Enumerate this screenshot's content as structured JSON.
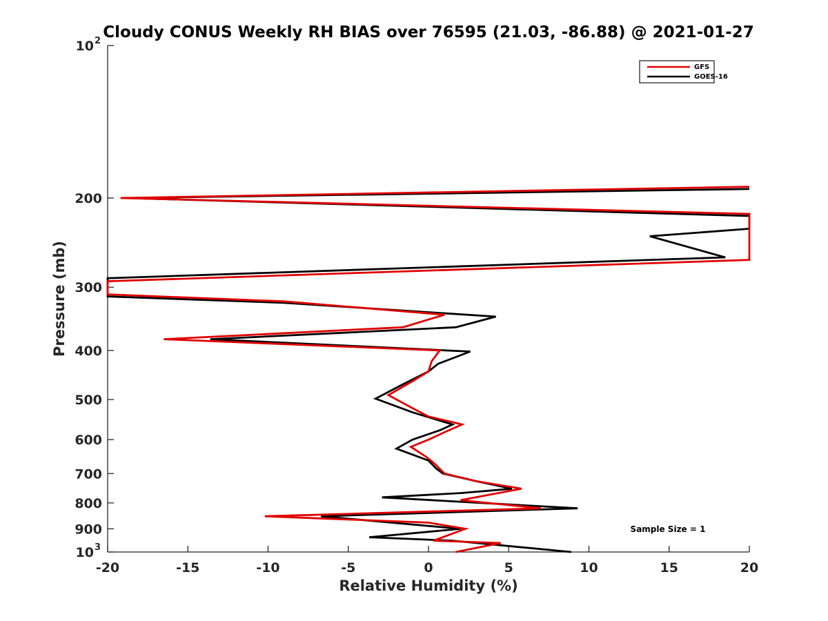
{
  "chart_data": {
    "type": "line",
    "title": "Cloudy CONUS Weekly RH BIAS over 76595 (21.03, -86.88) @ 2021-01-27",
    "xlabel": "Relative Humidity (%)",
    "ylabel": "Pressure (mb)",
    "xlim": [
      -20,
      20
    ],
    "ylim": [
      100,
      1000
    ],
    "yscale": "log",
    "y_reversed": true,
    "xticks": [
      -20,
      -15,
      -10,
      -5,
      0,
      5,
      10,
      15,
      20
    ],
    "xtick_labels": [
      "-20",
      "-15",
      "-10",
      "-5",
      "0",
      "5",
      "10",
      "15",
      "20"
    ],
    "yticks": [
      {
        "value": 100,
        "label": "10",
        "sup": "2"
      },
      {
        "value": 200,
        "label": "200",
        "sup": ""
      },
      {
        "value": 300,
        "label": "300",
        "sup": ""
      },
      {
        "value": 400,
        "label": "400",
        "sup": ""
      },
      {
        "value": 500,
        "label": "500",
        "sup": ""
      },
      {
        "value": 600,
        "label": "600",
        "sup": ""
      },
      {
        "value": 700,
        "label": "700",
        "sup": ""
      },
      {
        "value": 800,
        "label": "800",
        "sup": ""
      },
      {
        "value": 900,
        "label": "900",
        "sup": ""
      },
      {
        "value": 1000,
        "label": "10",
        "sup": "3"
      }
    ],
    "legend": {
      "position": "top-right",
      "entries": [
        "GFS",
        "GOES-16"
      ]
    },
    "annotation": "Sample Size = 1",
    "series": [
      {
        "name": "GFS",
        "color": "#e00000",
        "points": [
          [
            20,
            190
          ],
          [
            -19.2,
            200
          ],
          [
            20,
            215
          ],
          [
            20,
            265
          ],
          [
            -20,
            292
          ],
          [
            -20,
            310
          ],
          [
            -9,
            320
          ],
          [
            1.0,
            340
          ],
          [
            -1.6,
            360
          ],
          [
            -16.5,
            380
          ],
          [
            0.7,
            400
          ],
          [
            0.2,
            420
          ],
          [
            0.0,
            440
          ],
          [
            -1.0,
            460
          ],
          [
            -2.5,
            490
          ],
          [
            -1.0,
            520
          ],
          [
            0.0,
            540
          ],
          [
            2.1,
            560
          ],
          [
            1.0,
            580
          ],
          [
            0.0,
            600
          ],
          [
            -1.1,
            620
          ],
          [
            -0.1,
            650
          ],
          [
            0.4,
            670
          ],
          [
            0.6,
            680
          ],
          [
            1.0,
            700
          ],
          [
            3.0,
            725
          ],
          [
            5.8,
            750
          ],
          [
            2.0,
            790
          ],
          [
            7.0,
            820
          ],
          [
            -10.2,
            850
          ],
          [
            0.0,
            875
          ],
          [
            2.3,
            900
          ],
          [
            1.3,
            925
          ],
          [
            0.3,
            950
          ],
          [
            4.5,
            960
          ],
          [
            1.7,
            1000
          ]
        ]
      },
      {
        "name": "GOES-16",
        "color": "#000000",
        "points": [
          [
            20,
            192
          ],
          [
            -18.8,
            200
          ],
          [
            20,
            217
          ],
          [
            20,
            230
          ],
          [
            13.8,
            238
          ],
          [
            18.5,
            262
          ],
          [
            -20,
            288
          ],
          [
            -20,
            313
          ],
          [
            -9,
            322
          ],
          [
            4.2,
            343
          ],
          [
            1.7,
            360
          ],
          [
            -13.6,
            380
          ],
          [
            2.6,
            402
          ],
          [
            0.6,
            425
          ],
          [
            0.0,
            440
          ],
          [
            -1.5,
            465
          ],
          [
            -3.3,
            498
          ],
          [
            -1.0,
            530
          ],
          [
            1.5,
            560
          ],
          [
            0.7,
            575
          ],
          [
            -1.0,
            600
          ],
          [
            -2.0,
            625
          ],
          [
            0.0,
            660
          ],
          [
            0.5,
            685
          ],
          [
            0.9,
            700
          ],
          [
            3.0,
            725
          ],
          [
            5.2,
            750
          ],
          [
            2.0,
            765
          ],
          [
            -2.9,
            780
          ],
          [
            9.3,
            820
          ],
          [
            -6.7,
            850
          ],
          [
            2.0,
            900
          ],
          [
            -3.7,
            935
          ],
          [
            1.5,
            950
          ],
          [
            8.9,
            1000
          ]
        ]
      }
    ]
  }
}
